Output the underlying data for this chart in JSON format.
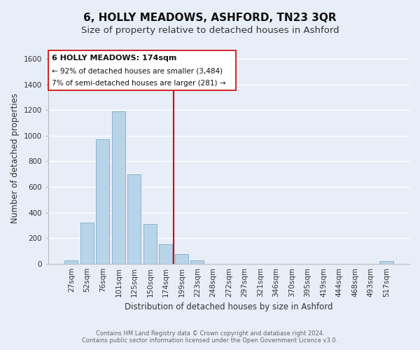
{
  "title": "6, HOLLY MEADOWS, ASHFORD, TN23 3QR",
  "subtitle": "Size of property relative to detached houses in Ashford",
  "xlabel": "Distribution of detached houses by size in Ashford",
  "ylabel": "Number of detached properties",
  "bar_labels": [
    "27sqm",
    "52sqm",
    "76sqm",
    "101sqm",
    "125sqm",
    "150sqm",
    "174sqm",
    "199sqm",
    "223sqm",
    "248sqm",
    "272sqm",
    "297sqm",
    "321sqm",
    "346sqm",
    "370sqm",
    "395sqm",
    "419sqm",
    "444sqm",
    "468sqm",
    "493sqm",
    "517sqm"
  ],
  "bar_heights": [
    25,
    320,
    970,
    1190,
    700,
    310,
    150,
    75,
    25,
    0,
    0,
    0,
    0,
    0,
    0,
    0,
    0,
    0,
    0,
    0,
    18
  ],
  "bar_color": "#b8d4e8",
  "bar_edge_color": "#8ab4cc",
  "highlight_line_index": 6,
  "highlight_line_color": "#cc0000",
  "box_text_line1": "6 HOLLY MEADOWS: 174sqm",
  "box_text_line2": "← 92% of detached houses are smaller (3,484)",
  "box_text_line3": "7% of semi-detached houses are larger (281) →",
  "box_facecolor": "white",
  "box_edgecolor": "#cc0000",
  "ylim": [
    0,
    1650
  ],
  "yticks": [
    0,
    200,
    400,
    600,
    800,
    1000,
    1200,
    1400,
    1600
  ],
  "footer_line1": "Contains HM Land Registry data © Crown copyright and database right 2024.",
  "footer_line2": "Contains public sector information licensed under the Open Government Licence v3.0.",
  "background_color": "#e8eef8",
  "plot_bg_color": "#e8eef8",
  "grid_color": "#ffffff",
  "title_fontsize": 11,
  "subtitle_fontsize": 9.5,
  "ylabel_fontsize": 8.5,
  "xlabel_fontsize": 8.5,
  "tick_fontsize": 7.5,
  "footer_fontsize": 6
}
